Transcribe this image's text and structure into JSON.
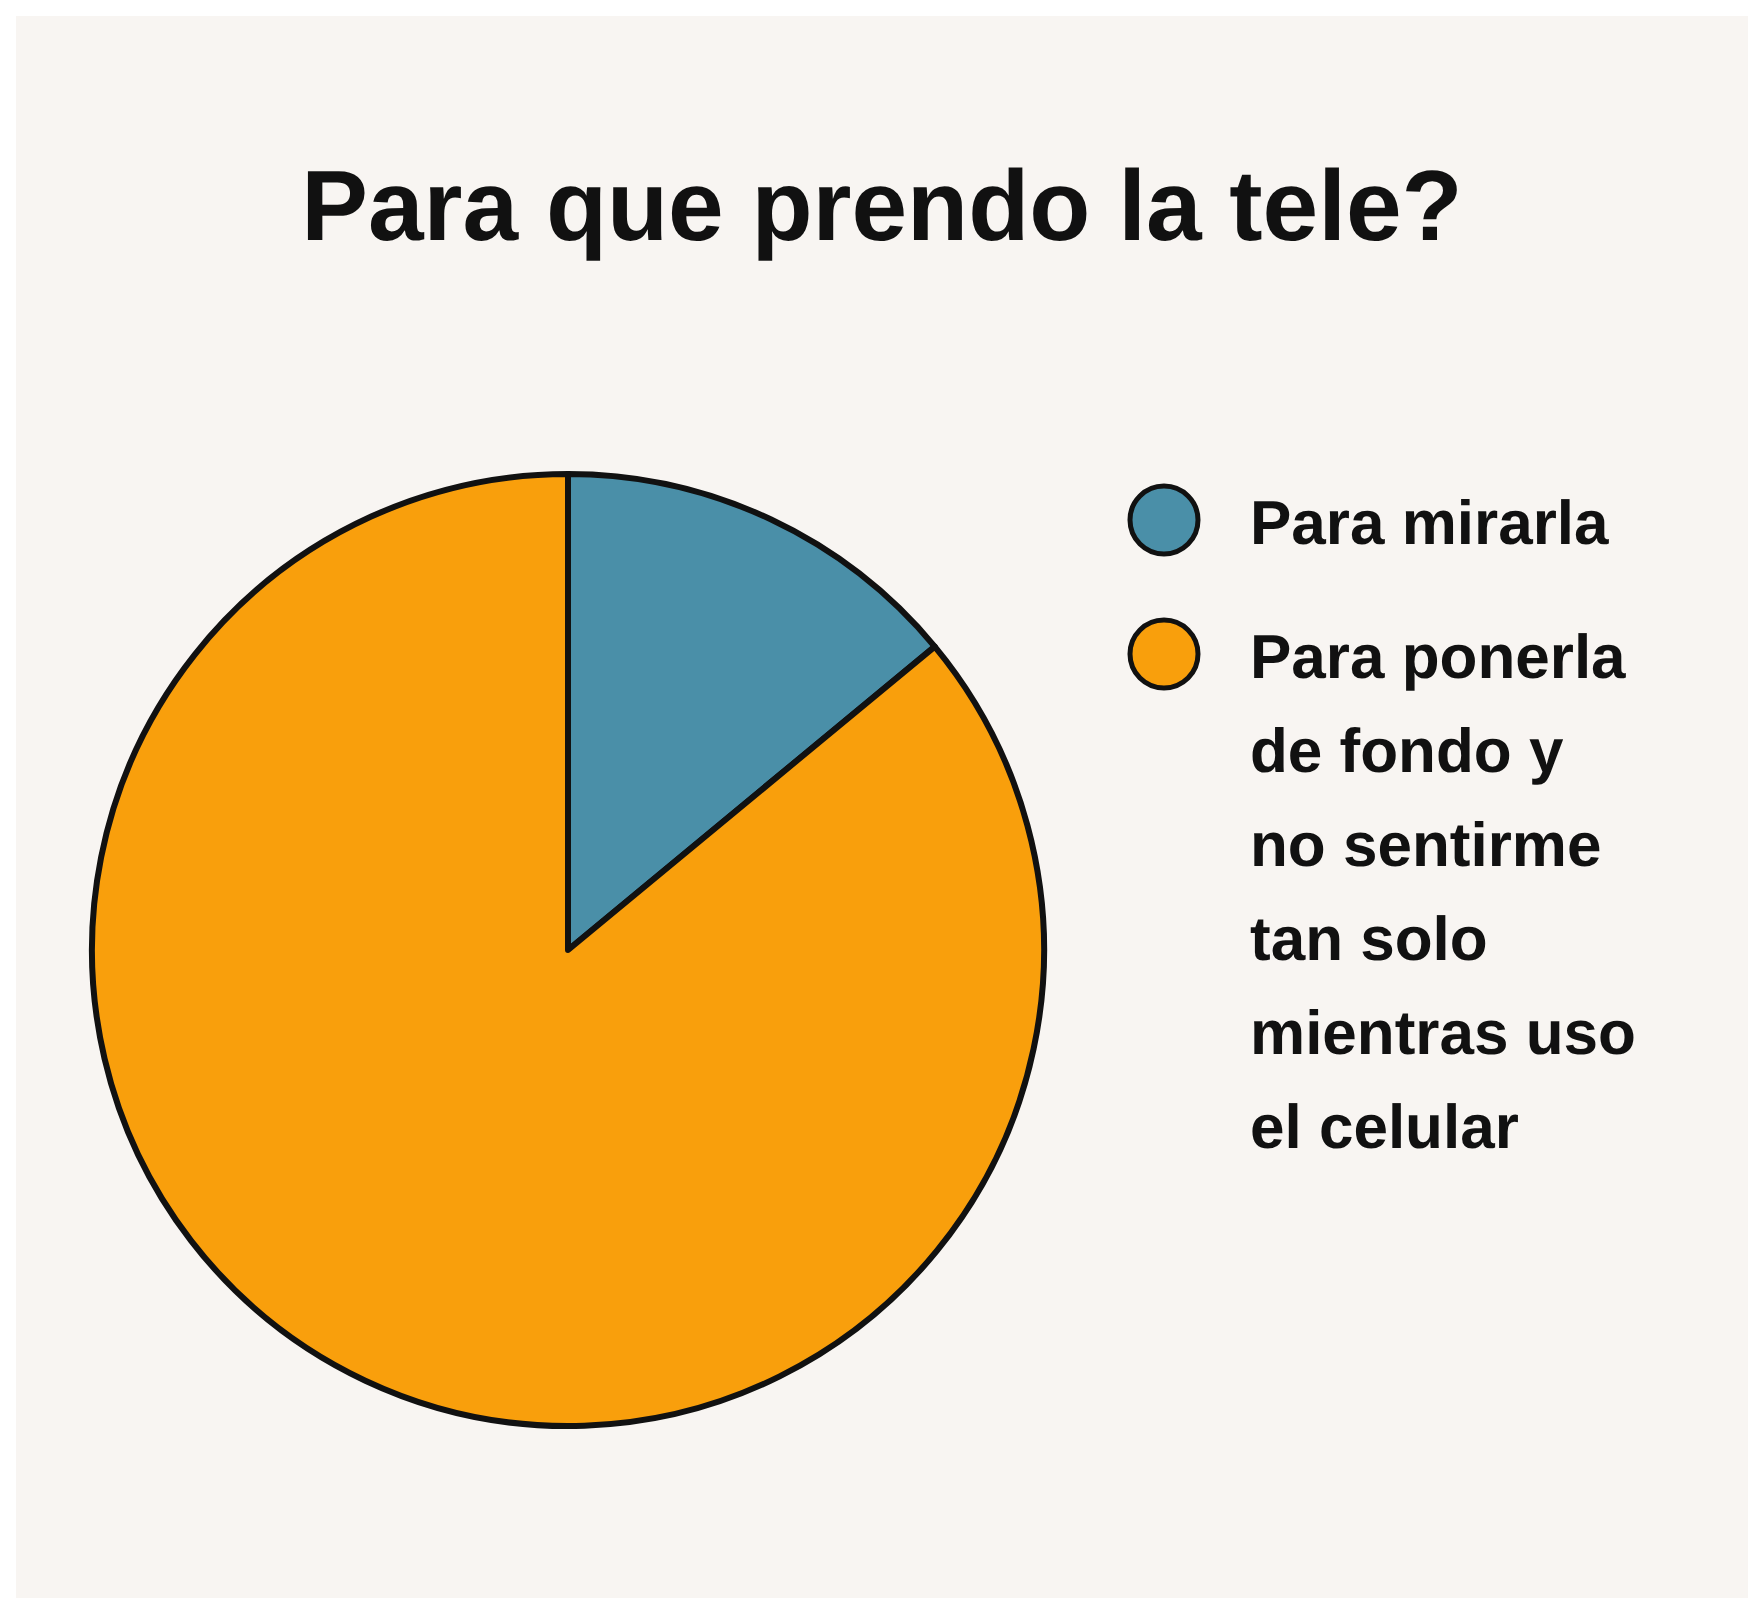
{
  "chart_data": {
    "type": "pie",
    "title": "Para que prendo la tele?",
    "categories": [
      "Para mirarla",
      "Para ponerla de fondo y no sentirme tan solo mientras uso el celular"
    ],
    "values": [
      14,
      86
    ],
    "colors": [
      "#4a8fa8",
      "#f99f0c"
    ],
    "legend": "right"
  }
}
